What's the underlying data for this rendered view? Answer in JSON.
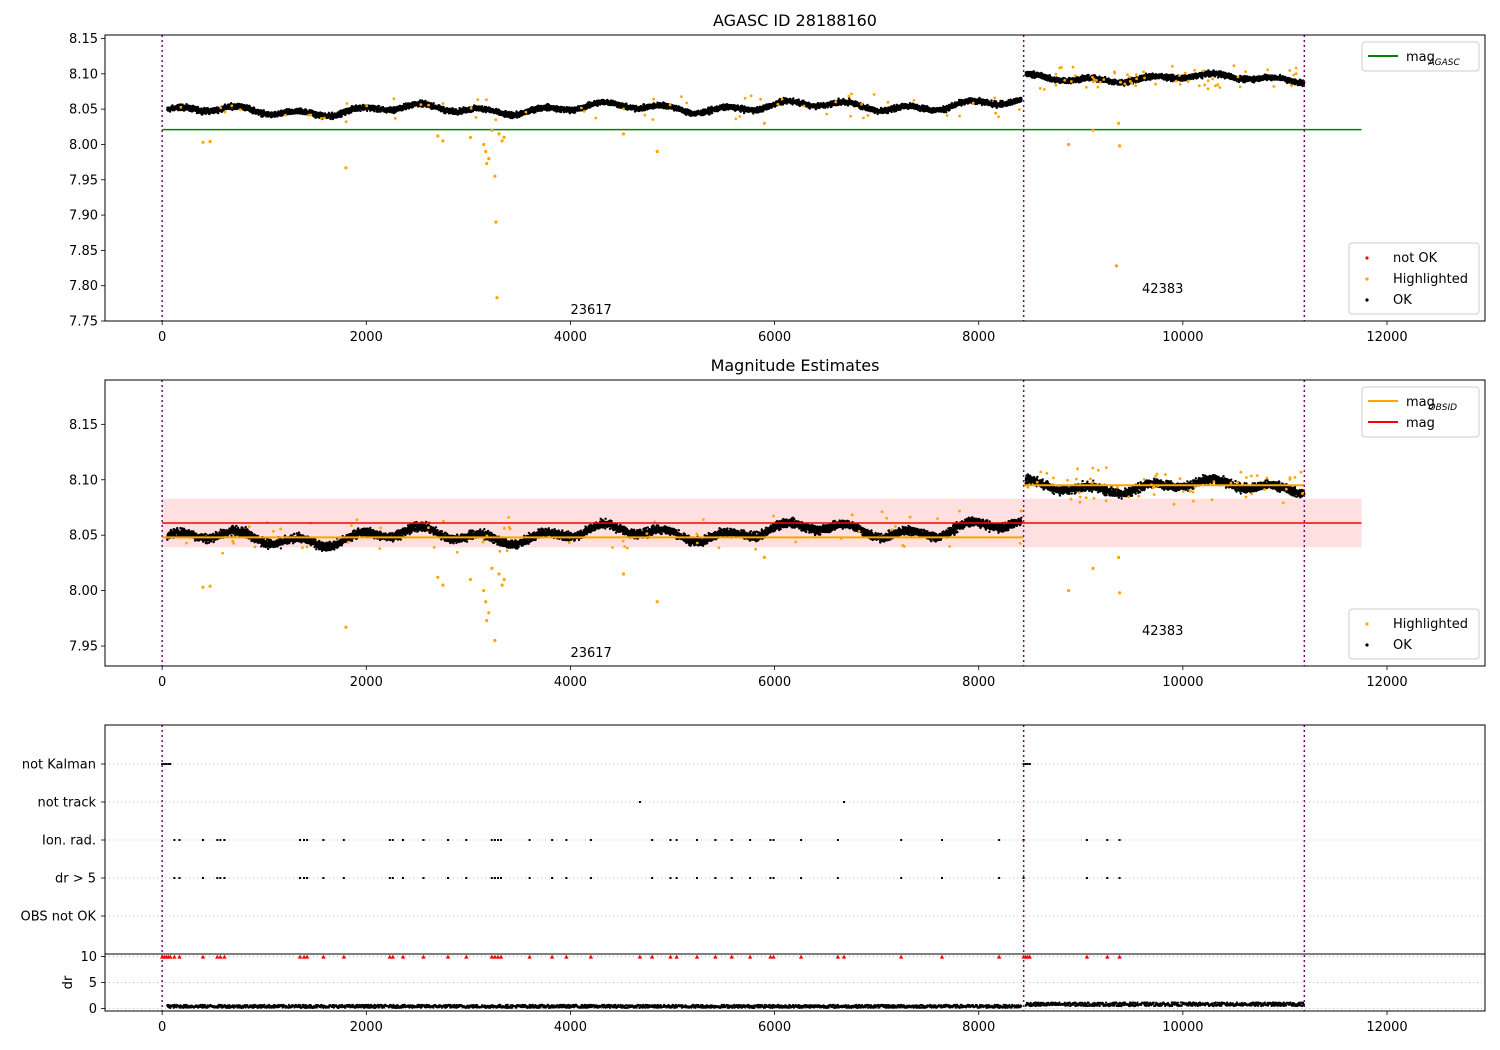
{
  "chart_data": [
    {
      "type": "scatter",
      "title": "AGASC ID 28188160",
      "xlim": [
        -560,
        12960
      ],
      "ylim": [
        7.75,
        8.155
      ],
      "xticks": [
        0,
        2000,
        4000,
        6000,
        8000,
        10000,
        12000
      ],
      "yticks": [
        7.75,
        7.8,
        7.85,
        7.9,
        7.95,
        8.0,
        8.05,
        8.1,
        8.15
      ],
      "vlines": [
        0,
        8440,
        11190
      ],
      "hline": {
        "name": "mag",
        "sub": "AGASC",
        "y": 8.021,
        "x0": 0,
        "x1": 11750,
        "color": "#008000"
      },
      "segments": [
        {
          "x0": 50,
          "x1": 8420,
          "base": 8.046,
          "amp": 0.008,
          "slope": 1.25e-06,
          "noise": 0.006
        },
        {
          "x0": 8460,
          "x1": 11190,
          "base": 8.094,
          "amp": 0.006,
          "slope": 0.0,
          "noise": 0.006
        }
      ],
      "highlighted": [
        [
          400,
          8.003
        ],
        [
          470,
          8.004
        ],
        [
          1800,
          7.967
        ],
        [
          2700,
          8.012
        ],
        [
          2750,
          8.005
        ],
        [
          3020,
          8.01
        ],
        [
          3150,
          8.0
        ],
        [
          3170,
          7.99
        ],
        [
          3180,
          7.973
        ],
        [
          3200,
          7.98
        ],
        [
          3230,
          8.02
        ],
        [
          3260,
          7.955
        ],
        [
          3270,
          7.89
        ],
        [
          3280,
          7.783
        ],
        [
          3300,
          8.015
        ],
        [
          3330,
          8.005
        ],
        [
          3350,
          8.01
        ],
        [
          4520,
          8.015
        ],
        [
          4850,
          7.99
        ],
        [
          5900,
          8.03
        ],
        [
          8880,
          8.0
        ],
        [
          9120,
          8.02
        ],
        [
          9350,
          7.828
        ],
        [
          9370,
          8.03
        ],
        [
          9380,
          7.998
        ]
      ],
      "annotations": [
        {
          "x": 4000,
          "y": 7.76,
          "text": "23617"
        },
        {
          "x": 9600,
          "y": 7.79,
          "text": "42383"
        }
      ],
      "legend_top": [
        {
          "label": "mag",
          "sub": "AGASC",
          "color": "#008000"
        }
      ],
      "legend_bottom": [
        {
          "label": "not OK",
          "color": "#ff0000"
        },
        {
          "label": "Highlighted",
          "color": "#ffa500"
        },
        {
          "label": "OK",
          "color": "#000000"
        }
      ]
    },
    {
      "type": "scatter",
      "title": "Magnitude Estimates",
      "xlim": [
        -560,
        12960
      ],
      "ylim": [
        7.932,
        8.19
      ],
      "xticks": [
        0,
        2000,
        4000,
        6000,
        8000,
        10000,
        12000
      ],
      "yticks": [
        7.95,
        8.0,
        8.05,
        8.1,
        8.15
      ],
      "vlines": [
        0,
        8440,
        11190
      ],
      "band": {
        "y0": 8.039,
        "y1": 8.083,
        "x0": 0,
        "x1": 11750
      },
      "hline": {
        "name": "mag",
        "y": 8.061,
        "x0": 0,
        "x1": 11750,
        "color": "#ff0000"
      },
      "obsid_lines": [
        {
          "x0": 0,
          "x1": 8440,
          "y": 8.048
        },
        {
          "x0": 8440,
          "x1": 11190,
          "y": 8.095
        }
      ],
      "segments": [
        {
          "x0": 50,
          "x1": 8420,
          "base": 8.046,
          "amp": 0.008,
          "slope": 1.25e-06,
          "noise": 0.006
        },
        {
          "x0": 8460,
          "x1": 11190,
          "base": 8.094,
          "amp": 0.006,
          "slope": 0.0,
          "noise": 0.006
        }
      ],
      "highlighted": [
        [
          400,
          8.003
        ],
        [
          470,
          8.004
        ],
        [
          1800,
          7.967
        ],
        [
          2700,
          8.012
        ],
        [
          2750,
          8.005
        ],
        [
          3020,
          8.01
        ],
        [
          3150,
          8.0
        ],
        [
          3170,
          7.99
        ],
        [
          3180,
          7.973
        ],
        [
          3200,
          7.98
        ],
        [
          3230,
          8.02
        ],
        [
          3260,
          7.955
        ],
        [
          3300,
          8.015
        ],
        [
          3330,
          8.005
        ],
        [
          3350,
          8.01
        ],
        [
          4520,
          8.015
        ],
        [
          4850,
          7.99
        ],
        [
          5900,
          8.03
        ],
        [
          8880,
          8.0
        ],
        [
          9120,
          8.02
        ],
        [
          9370,
          8.03
        ],
        [
          9380,
          7.998
        ]
      ],
      "annotations": [
        {
          "x": 4000,
          "y": 7.94,
          "text": "23617"
        },
        {
          "x": 9600,
          "y": 7.96,
          "text": "42383"
        }
      ],
      "legend_top": [
        {
          "label": "mag",
          "sub": "OBSID",
          "color": "#ffa500"
        },
        {
          "label": "mag",
          "color": "#ff0000"
        }
      ],
      "legend_bottom": [
        {
          "label": "Highlighted",
          "color": "#ffa500"
        },
        {
          "label": "OK",
          "color": "#000000"
        }
      ]
    },
    {
      "type": "scatter",
      "title": "",
      "xlim": [
        -560,
        12960
      ],
      "xticks": [
        0,
        2000,
        4000,
        6000,
        8000,
        10000,
        12000
      ],
      "vlines": [
        0,
        8440,
        11190
      ],
      "flag_labels": [
        "not Kalman",
        "not track",
        "Ion. rad.",
        "dr > 5",
        "OBS not OK"
      ],
      "flags": {
        "not Kalman": [
          0,
          20,
          40,
          60,
          80,
          8440,
          8460,
          8480,
          8500
        ],
        "not track": [
          4680,
          6680
        ],
        "Ion. rad.": [
          120,
          170,
          400,
          540,
          570,
          610,
          1350,
          1390,
          1420,
          1580,
          1780,
          2230,
          2260,
          2360,
          2560,
          2800,
          2980,
          3230,
          3260,
          3290,
          3320,
          3600,
          3820,
          3960,
          4200,
          4800,
          4980,
          5040,
          5240,
          5420,
          5580,
          5760,
          5960,
          5990,
          6260,
          6620,
          7240,
          7640,
          8200,
          8440,
          9060,
          9260,
          9380
        ],
        "dr > 5": [
          120,
          170,
          400,
          540,
          570,
          610,
          1350,
          1390,
          1420,
          1580,
          1780,
          2230,
          2260,
          2360,
          2560,
          2800,
          2980,
          3230,
          3260,
          3290,
          3320,
          3600,
          3820,
          3960,
          4200,
          4800,
          4980,
          5040,
          5240,
          5420,
          5580,
          5760,
          5960,
          5990,
          6260,
          6620,
          7240,
          7640,
          8200,
          8440,
          9060,
          9260,
          9380
        ],
        "OBS not OK": []
      },
      "dr": {
        "ylabel": "dr",
        "ylim": [
          -0.5,
          10.5
        ],
        "yticks": [
          0,
          5,
          10
        ],
        "clipped_at": 10,
        "clipped_x": [
          0,
          20,
          40,
          60,
          80,
          120,
          170,
          400,
          540,
          570,
          610,
          1350,
          1390,
          1420,
          1580,
          1780,
          2230,
          2260,
          2360,
          2560,
          2800,
          2980,
          3230,
          3260,
          3290,
          3320,
          3600,
          3820,
          3960,
          4200,
          4680,
          4800,
          4980,
          5040,
          5240,
          5420,
          5580,
          5760,
          5960,
          5990,
          6260,
          6620,
          6680,
          7240,
          7640,
          8200,
          8440,
          8460,
          8480,
          8500,
          9060,
          9260,
          9380
        ],
        "segments": [
          {
            "x0": 50,
            "x1": 8420,
            "mean": 0.4,
            "spread": 0.6
          },
          {
            "x0": 8460,
            "x1": 11190,
            "mean": 0.8,
            "spread": 0.7
          }
        ]
      }
    }
  ]
}
